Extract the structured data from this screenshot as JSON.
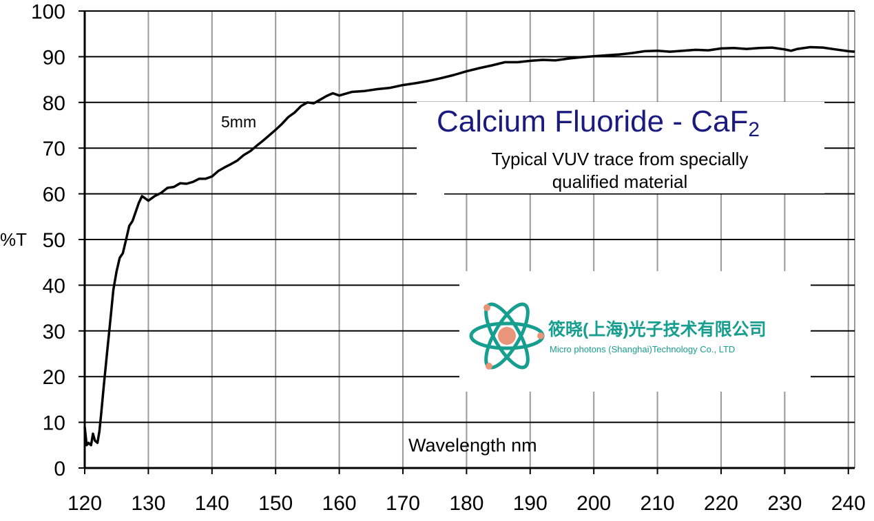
{
  "chart_data": {
    "type": "line",
    "title": "Calcium Fluoride - CaF",
    "title_subscript": "2",
    "subtitle": [
      "Typical VUV trace from specially",
      "qualified material"
    ],
    "xlabel": "Wavelength nm",
    "ylabel": "%T",
    "xlim": [
      120,
      241
    ],
    "ylim": [
      0,
      100
    ],
    "xticks": [
      120,
      130,
      140,
      150,
      160,
      170,
      180,
      190,
      200,
      210,
      220,
      230,
      240
    ],
    "yticks": [
      0,
      10,
      20,
      30,
      40,
      50,
      60,
      70,
      80,
      90,
      100
    ],
    "grid": true,
    "annotations": [
      {
        "text": "5mm",
        "x": 141.5,
        "y": 75.3
      }
    ],
    "series": [
      {
        "color": "#000000",
        "points": [
          [
            120,
            9
          ],
          [
            120.3,
            5
          ],
          [
            120.6,
            5.5
          ],
          [
            121,
            5
          ],
          [
            121.3,
            7.5
          ],
          [
            121.6,
            6
          ],
          [
            122,
            5.5
          ],
          [
            122.3,
            8
          ],
          [
            122.6,
            12
          ],
          [
            123,
            18
          ],
          [
            123.5,
            25
          ],
          [
            124,
            32
          ],
          [
            124.5,
            39
          ],
          [
            125,
            43
          ],
          [
            125.5,
            46
          ],
          [
            126,
            47
          ],
          [
            126.5,
            50
          ],
          [
            127,
            53
          ],
          [
            127.5,
            54
          ],
          [
            128,
            56
          ],
          [
            128.5,
            58
          ],
          [
            129,
            59.5
          ],
          [
            129.5,
            59
          ],
          [
            130,
            58.5
          ],
          [
            131,
            59.5
          ],
          [
            132,
            60.2
          ],
          [
            133,
            61.3
          ],
          [
            134,
            61.5
          ],
          [
            135,
            62.3
          ],
          [
            136,
            62.2
          ],
          [
            137,
            62.6
          ],
          [
            138,
            63.3
          ],
          [
            139,
            63.3
          ],
          [
            140,
            63.8
          ],
          [
            141,
            65
          ],
          [
            142,
            65.8
          ],
          [
            143,
            66.5
          ],
          [
            144,
            67.3
          ],
          [
            145,
            68.5
          ],
          [
            146,
            69.3
          ],
          [
            147,
            70.5
          ],
          [
            148,
            71.6
          ],
          [
            149,
            72.8
          ],
          [
            150,
            74
          ],
          [
            151,
            75.3
          ],
          [
            152,
            76.8
          ],
          [
            153,
            77.8
          ],
          [
            154,
            79.2
          ],
          [
            155,
            80
          ],
          [
            156,
            79.8
          ],
          [
            157,
            80.6
          ],
          [
            158,
            81.4
          ],
          [
            159,
            82
          ],
          [
            160,
            81.5
          ],
          [
            162,
            82.3
          ],
          [
            164,
            82.5
          ],
          [
            166,
            82.9
          ],
          [
            168,
            83.2
          ],
          [
            170,
            83.8
          ],
          [
            172,
            84.2
          ],
          [
            174,
            84.7
          ],
          [
            176,
            85.3
          ],
          [
            178,
            86
          ],
          [
            180,
            86.8
          ],
          [
            182,
            87.5
          ],
          [
            184,
            88.1
          ],
          [
            186,
            88.8
          ],
          [
            188,
            88.8
          ],
          [
            190,
            89.1
          ],
          [
            192,
            89.3
          ],
          [
            194,
            89.2
          ],
          [
            196,
            89.6
          ],
          [
            198,
            89.9
          ],
          [
            200,
            90.1
          ],
          [
            202,
            90.3
          ],
          [
            204,
            90.5
          ],
          [
            206,
            90.8
          ],
          [
            208,
            91.2
          ],
          [
            210,
            91.3
          ],
          [
            212,
            91.1
          ],
          [
            214,
            91.3
          ],
          [
            216,
            91.5
          ],
          [
            218,
            91.4
          ],
          [
            220,
            91.8
          ],
          [
            222,
            91.9
          ],
          [
            224,
            91.7
          ],
          [
            226,
            91.9
          ],
          [
            228,
            92
          ],
          [
            230,
            91.6
          ],
          [
            231,
            91.3
          ],
          [
            232,
            91.7
          ],
          [
            234,
            92.1
          ],
          [
            236,
            92
          ],
          [
            238,
            91.6
          ],
          [
            240,
            91.2
          ],
          [
            241,
            91.1
          ]
        ]
      }
    ]
  },
  "logo": {
    "name_cn": "筱晓(上海)光子技术有限公司",
    "name_en": "Micro photons (Shanghai)Technology Co., LTD",
    "colors": {
      "primary": "#169e8f",
      "accent": "#e8957a"
    }
  }
}
